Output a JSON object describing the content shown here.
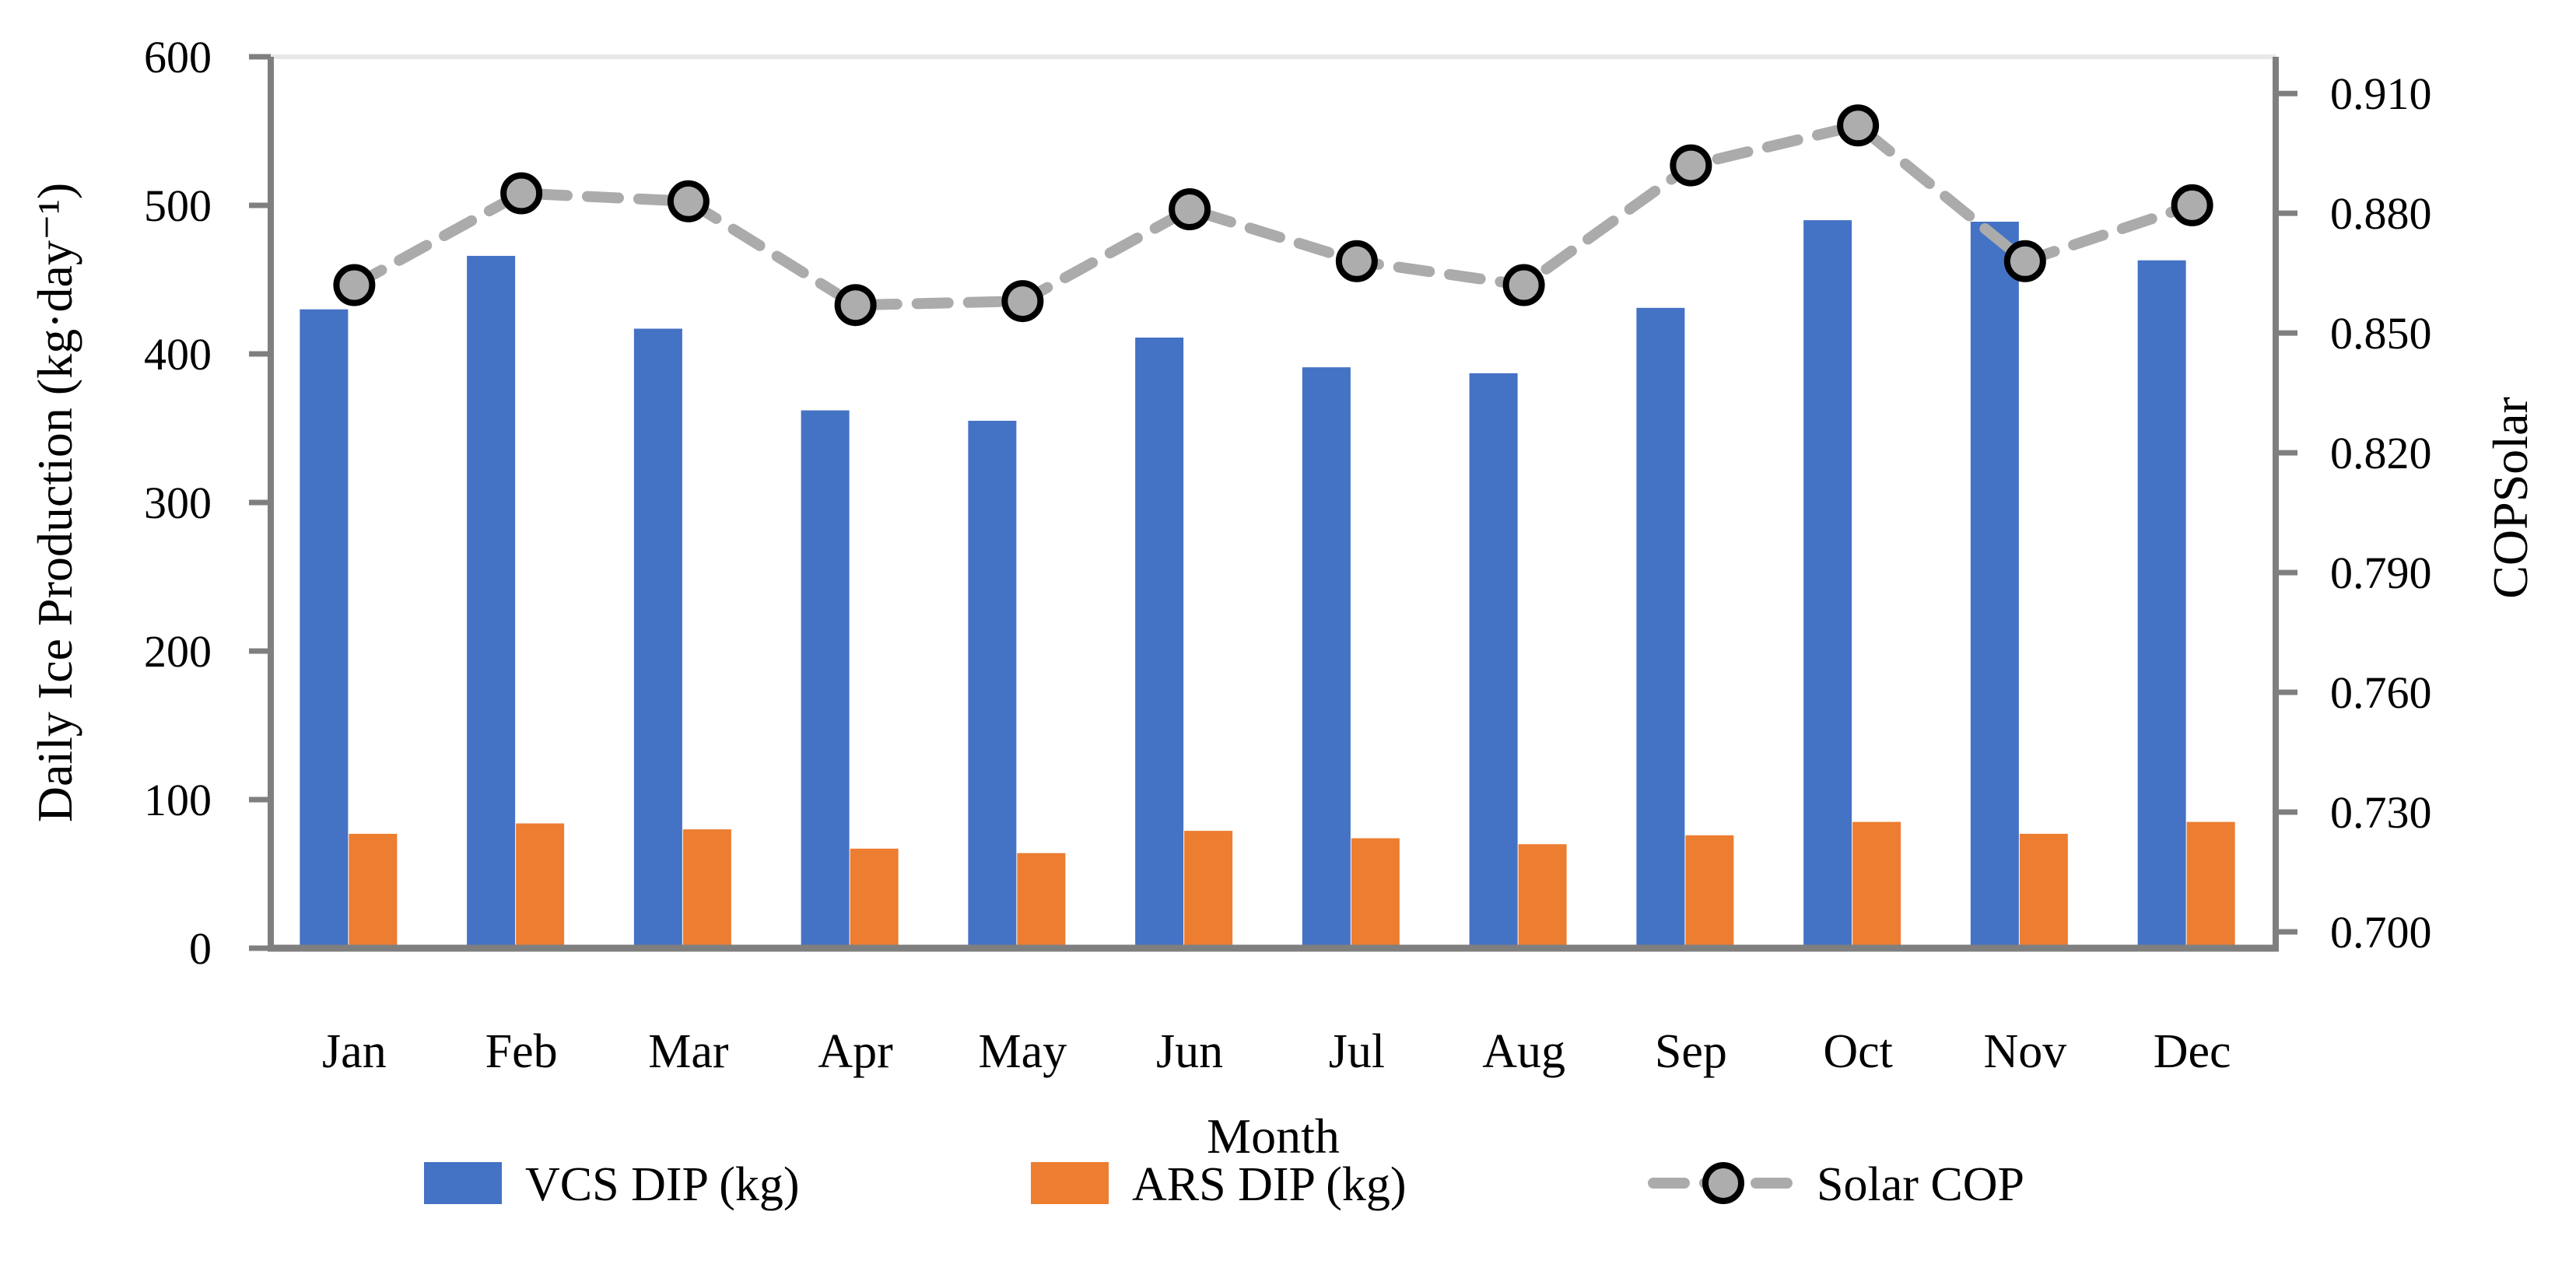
{
  "chart_data": {
    "type": "bar",
    "title": "",
    "categories": [
      "Jan",
      "Feb",
      "Mar",
      "Apr",
      "May",
      "Jun",
      "Jul",
      "Aug",
      "Sep",
      "Oct",
      "Nov",
      "Dec"
    ],
    "series": [
      {
        "name": "VCS DIP (kg)",
        "type": "bar",
        "axis": "left",
        "color": "#4472C4",
        "values": [
          430,
          466,
          417,
          362,
          355,
          411,
          391,
          387,
          431,
          490,
          489,
          463
        ]
      },
      {
        "name": "ARS DIP  (kg)",
        "type": "bar",
        "axis": "left",
        "color": "#ED7D31",
        "values": [
          77,
          84,
          80,
          67,
          64,
          79,
          74,
          70,
          76,
          85,
          77,
          85
        ]
      },
      {
        "name": "Solar COP",
        "type": "line",
        "axis": "right",
        "color": "#ABABAB",
        "marker_fill": "#ADADAD",
        "marker_stroke": "#000000",
        "line_style": "dashed",
        "values": [
          0.862,
          0.885,
          0.883,
          0.857,
          0.858,
          0.881,
          0.868,
          0.862,
          0.892,
          0.902,
          0.868,
          0.882
        ]
      }
    ],
    "x_axis": {
      "title": "Month"
    },
    "left_axis": {
      "title": "Daily Ice Production (kg·day⁻¹)",
      "min": 0,
      "max": 600,
      "step": 100,
      "tick_labels": [
        "0",
        "100",
        "200",
        "300",
        "400",
        "500",
        "600"
      ]
    },
    "right_axis": {
      "title": "COPSolar",
      "tick_min": 0.7,
      "tick_max": 0.91,
      "step": 0.03,
      "plot_min": 0.6959,
      "plot_max": 0.9192,
      "tick_labels": [
        "0.700",
        "0.730",
        "0.760",
        "0.790",
        "0.820",
        "0.850",
        "0.880",
        "0.910"
      ]
    },
    "grid": "off",
    "legend_position": "bottom",
    "axis_color": "#7F7F7F",
    "top_border_color": "#E7E7E7"
  },
  "legend": {
    "items": [
      {
        "label": "VCS DIP (kg)",
        "swatch": "bar-swatch",
        "color": "#4472C4"
      },
      {
        "label": "ARS DIP  (kg)",
        "swatch": "bar-swatch",
        "color": "#ED7D31"
      },
      {
        "label": "Solar COP",
        "swatch": "dashed-line-circle-marker",
        "color": "#ABABAB"
      }
    ]
  }
}
